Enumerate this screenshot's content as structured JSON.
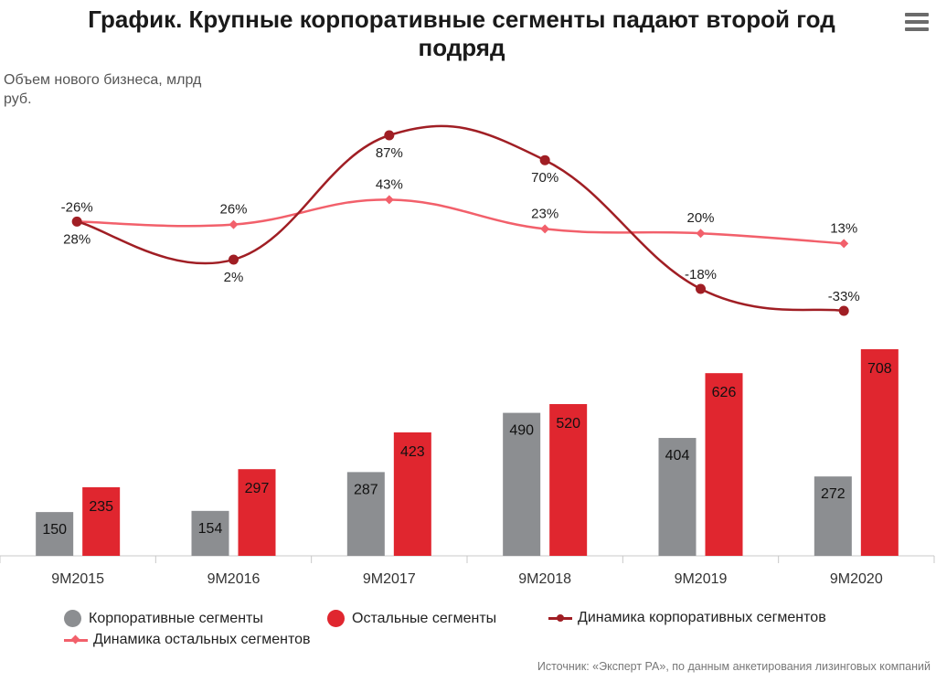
{
  "title": "График. Крупные корпоративные сегменты падают второй год подряд",
  "menu_icon": "hamburger-menu-icon",
  "colors": {
    "corporate_bar": "#8c8e91",
    "other_bar": "#e0262f",
    "corporate_line": "#a01e24",
    "other_line": "#f2606b",
    "axis": "#c8c8c8"
  },
  "chart_data": {
    "type": "bar",
    "ylabel": "Объем нового бизнеса, млрд руб.",
    "categories": [
      "9М2015",
      "9М2016",
      "9М2017",
      "9М2018",
      "9М2019",
      "9М2020"
    ],
    "series": [
      {
        "name": "Корпоративные сегменты",
        "kind": "bar",
        "values": [
          150,
          154,
          287,
          490,
          404,
          272
        ]
      },
      {
        "name": "Остальные сегменты",
        "kind": "bar",
        "values": [
          235,
          297,
          423,
          520,
          626,
          708
        ]
      },
      {
        "name": "Динамика корпоративных сегментов",
        "kind": "line",
        "unit": "%",
        "values": [
          -26,
          2,
          87,
          70,
          -18,
          -33
        ]
      },
      {
        "name": "Динамика остальных сегментов",
        "kind": "line",
        "unit": "%",
        "values": [
          28,
          26,
          43,
          23,
          20,
          13
        ]
      }
    ],
    "bar_ylim": [
      0,
      708
    ],
    "line_ylim": [
      -33,
      87
    ],
    "legend_position": "bottom"
  },
  "legend": [
    {
      "label": "Корпоративные сегменты",
      "marker": "dot"
    },
    {
      "label": "Остальные сегменты",
      "marker": "dot"
    },
    {
      "label": "Динамика корпоративных сегментов",
      "marker": "line-circle"
    },
    {
      "label": "Динамика остальных сегментов",
      "marker": "line-diamond"
    }
  ],
  "source": "Источник: «Эксперт РА», по данным анкетирования лизинговых компаний"
}
